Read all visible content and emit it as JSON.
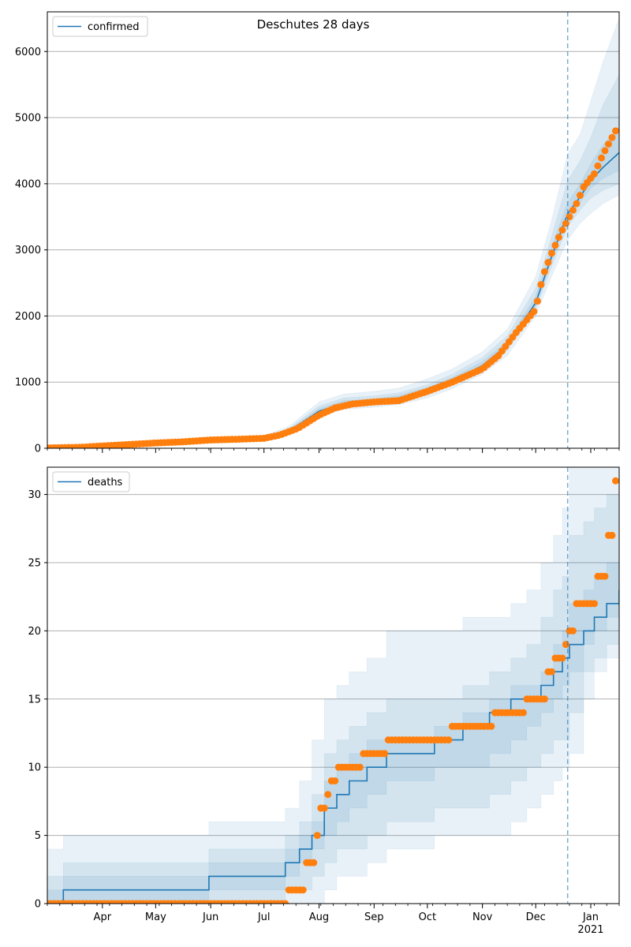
{
  "figure": {
    "title": "Deschutes 28 days",
    "forecast_date": "2020-12-19"
  },
  "colors": {
    "model_line": "#1f77b4",
    "observed": "#ff7f0e",
    "band": "#1f77b4",
    "grid": "#b0b0b0"
  },
  "x_axis": {
    "start": "2020-03-01",
    "end": "2021-01-17",
    "month_labels": [
      {
        "date": "2020-04-01",
        "label": "Apr"
      },
      {
        "date": "2020-05-01",
        "label": "May"
      },
      {
        "date": "2020-06-01",
        "label": "Jun"
      },
      {
        "date": "2020-07-01",
        "label": "Jul"
      },
      {
        "date": "2020-08-01",
        "label": "Aug"
      },
      {
        "date": "2020-09-01",
        "label": "Sep"
      },
      {
        "date": "2020-10-01",
        "label": "Oct"
      },
      {
        "date": "2020-11-01",
        "label": "Nov"
      },
      {
        "date": "2020-12-01",
        "label": "Dec"
      },
      {
        "date": "2021-01-01",
        "label": "Jan"
      }
    ],
    "year_label": "2021"
  },
  "chart_data": [
    {
      "type": "line",
      "legend": "confirmed",
      "legend_position": "top-left",
      "grid": "y",
      "ylim": [
        0,
        6600
      ],
      "yticks": [
        0,
        1000,
        2000,
        3000,
        4000,
        5000,
        6000
      ],
      "model": {
        "x": [
          "2020-03-01",
          "2020-04-01",
          "2020-05-01",
          "2020-06-01",
          "2020-07-01",
          "2020-07-15",
          "2020-08-01",
          "2020-08-15",
          "2020-09-01",
          "2020-09-15",
          "2020-10-01",
          "2020-10-15",
          "2020-11-01",
          "2020-11-15",
          "2020-12-01",
          "2020-12-10",
          "2020-12-19",
          "2020-12-26",
          "2021-01-01",
          "2021-01-08",
          "2021-01-17"
        ],
        "y": [
          5,
          35,
          80,
          125,
          150,
          260,
          560,
          680,
          710,
          760,
          870,
          1020,
          1250,
          1560,
          2200,
          2900,
          3550,
          3800,
          4050,
          4250,
          4470
        ]
      },
      "bands": [
        {
          "lo": [
            0,
            20,
            60,
            100,
            120,
            200,
            470,
            590,
            620,
            660,
            760,
            900,
            1120,
            1400,
            2000,
            2600,
            3150,
            3400,
            3550,
            3700,
            3830
          ],
          "hi": [
            15,
            55,
            110,
            160,
            190,
            330,
            700,
            820,
            860,
            910,
            1050,
            1200,
            1460,
            1800,
            2600,
            3450,
            4450,
            4750,
            5250,
            5850,
            6500
          ]
        },
        {
          "lo": [
            2,
            27,
            70,
            110,
            135,
            230,
            510,
            630,
            660,
            700,
            810,
            960,
            1180,
            1480,
            2100,
            2750,
            3350,
            3600,
            3780,
            3900,
            4000
          ],
          "hi": [
            10,
            45,
            95,
            145,
            170,
            300,
            640,
            760,
            790,
            840,
            960,
            1120,
            1370,
            1700,
            2420,
            3200,
            4050,
            4350,
            4700,
            5200,
            5650
          ]
        },
        {
          "lo": [
            4,
            32,
            76,
            118,
            145,
            245,
            535,
            660,
            690,
            735,
            845,
            995,
            1220,
            1525,
            2150,
            2830,
            3470,
            3720,
            3930,
            4080,
            4200
          ],
          "hi": [
            7,
            40,
            88,
            135,
            160,
            280,
            600,
            720,
            745,
            800,
            920,
            1070,
            1310,
            1620,
            2300,
            3050,
            3720,
            4000,
            4300,
            4600,
            4850
          ]
        }
      ],
      "observed": {
        "x": [
          "2020-03-01",
          "2020-03-20",
          "2020-04-01",
          "2020-04-15",
          "2020-05-01",
          "2020-05-15",
          "2020-06-01",
          "2020-06-15",
          "2020-07-01",
          "2020-07-10",
          "2020-07-20",
          "2020-08-01",
          "2020-08-10",
          "2020-08-20",
          "2020-09-01",
          "2020-09-15",
          "2020-10-01",
          "2020-10-15",
          "2020-11-01",
          "2020-11-10",
          "2020-11-20",
          "2020-12-01",
          "2020-12-05",
          "2020-12-10",
          "2020-12-15",
          "2020-12-19",
          "2020-12-24",
          "2020-12-28",
          "2021-01-03",
          "2021-01-08",
          "2021-01-13",
          "2021-01-16"
        ],
        "y": [
          5,
          15,
          35,
          55,
          80,
          95,
          125,
          135,
          150,
          200,
          300,
          500,
          610,
          670,
          700,
          720,
          860,
          1000,
          1200,
          1400,
          1750,
          2100,
          2600,
          2950,
          3250,
          3450,
          3700,
          3950,
          4150,
          4450,
          4700,
          4850
        ]
      }
    },
    {
      "type": "line",
      "legend": "deaths",
      "legend_position": "top-left",
      "grid": "y",
      "ylim": [
        0,
        32
      ],
      "yticks": [
        0,
        5,
        10,
        15,
        20,
        25,
        30
      ],
      "model": {
        "x": [
          "2020-03-01",
          "2020-03-10",
          "2020-05-31",
          "2020-07-13",
          "2020-07-21",
          "2020-07-28",
          "2020-08-04",
          "2020-08-11",
          "2020-08-18",
          "2020-08-28",
          "2020-09-08",
          "2020-10-05",
          "2020-10-21",
          "2020-11-05",
          "2020-11-17",
          "2020-11-26",
          "2020-12-04",
          "2020-12-11",
          "2020-12-16",
          "2020-12-20",
          "2020-12-28",
          "2021-01-03",
          "2021-01-10",
          "2021-01-17"
        ],
        "y": [
          0,
          1,
          2,
          3,
          4,
          5,
          7,
          8,
          9,
          10,
          11,
          12,
          13,
          14,
          15,
          15,
          16,
          17,
          18,
          19,
          20,
          21,
          22,
          23
        ]
      },
      "bands": [
        {
          "lo": [
            0,
            0,
            0,
            0,
            0,
            0,
            1,
            2,
            2,
            3,
            4,
            5,
            5,
            5,
            6,
            7,
            8,
            9,
            10,
            11,
            15,
            17,
            18,
            19
          ],
          "hi": [
            4,
            5,
            6,
            7,
            9,
            12,
            15,
            16,
            17,
            18,
            20,
            20,
            21,
            21,
            22,
            23,
            25,
            27,
            29,
            32,
            32,
            32,
            32,
            32
          ]
        },
        {
          "lo": [
            0,
            0,
            0,
            1,
            1,
            2,
            3,
            4,
            4,
            5,
            6,
            7,
            7,
            8,
            9,
            10,
            11,
            12,
            12,
            14,
            17,
            18,
            19,
            20
          ],
          "hi": [
            2,
            3,
            4,
            5,
            6,
            8,
            11,
            12,
            13,
            14,
            15,
            15,
            16,
            17,
            18,
            19,
            21,
            23,
            24,
            27,
            28,
            29,
            30,
            31
          ]
        },
        {
          "lo": [
            0,
            0,
            1,
            2,
            3,
            4,
            5,
            6,
            7,
            8,
            9,
            10,
            10,
            11,
            12,
            13,
            14,
            15,
            16,
            17,
            19,
            20,
            21,
            22
          ],
          "hi": [
            1,
            2,
            3,
            4,
            5,
            6,
            9,
            10,
            11,
            12,
            12,
            13,
            14,
            15,
            16,
            16,
            17,
            19,
            20,
            22,
            23,
            24,
            25,
            26
          ]
        }
      ],
      "observed": {
        "x": [
          "2020-03-01",
          "2020-07-15",
          "2020-07-25",
          "2020-07-30",
          "2020-08-01",
          "2020-08-05",
          "2020-08-08",
          "2020-08-12",
          "2020-08-25",
          "2020-09-08",
          "2020-10-05",
          "2020-10-15",
          "2020-11-08",
          "2020-11-25",
          "2020-12-05",
          "2020-12-08",
          "2020-12-12",
          "2020-12-17",
          "2020-12-20",
          "2020-12-24",
          "2020-12-29",
          "2021-01-05",
          "2021-01-10",
          "2021-01-14",
          "2021-01-16"
        ],
        "y": [
          0,
          1,
          3,
          5,
          7,
          8,
          9,
          10,
          11,
          12,
          12,
          13,
          14,
          15,
          15,
          17,
          18,
          19,
          20,
          22,
          22,
          24,
          27,
          31,
          32
        ]
      }
    }
  ]
}
